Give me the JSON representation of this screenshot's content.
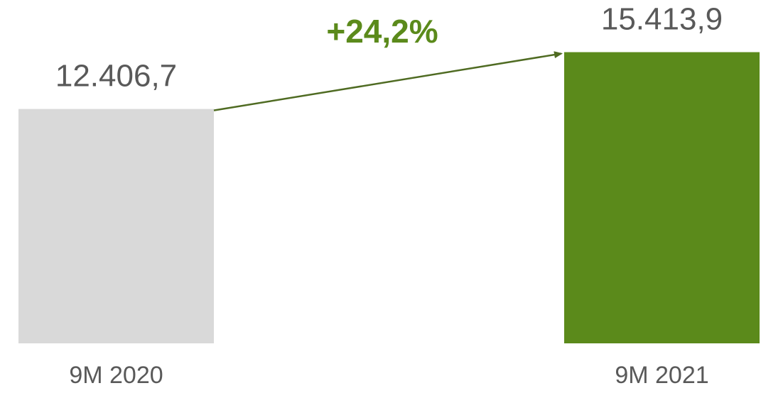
{
  "chart_data": {
    "type": "bar",
    "categories": [
      "9M 2020",
      "9M 2021"
    ],
    "values": [
      12406.7,
      15413.9
    ],
    "value_labels": [
      "12.406,7",
      "15.413,9"
    ],
    "annotation": "+24,2%",
    "colors": {
      "bars": [
        "#d9d9d9",
        "#5b8a1b"
      ],
      "arrow": "#4f6b22",
      "annotation": "#5b8a1b",
      "text": "#595959"
    },
    "title": "",
    "xlabel": "",
    "ylabel": "",
    "ylim": [
      0,
      16000
    ],
    "grid": false,
    "legend": "none"
  }
}
